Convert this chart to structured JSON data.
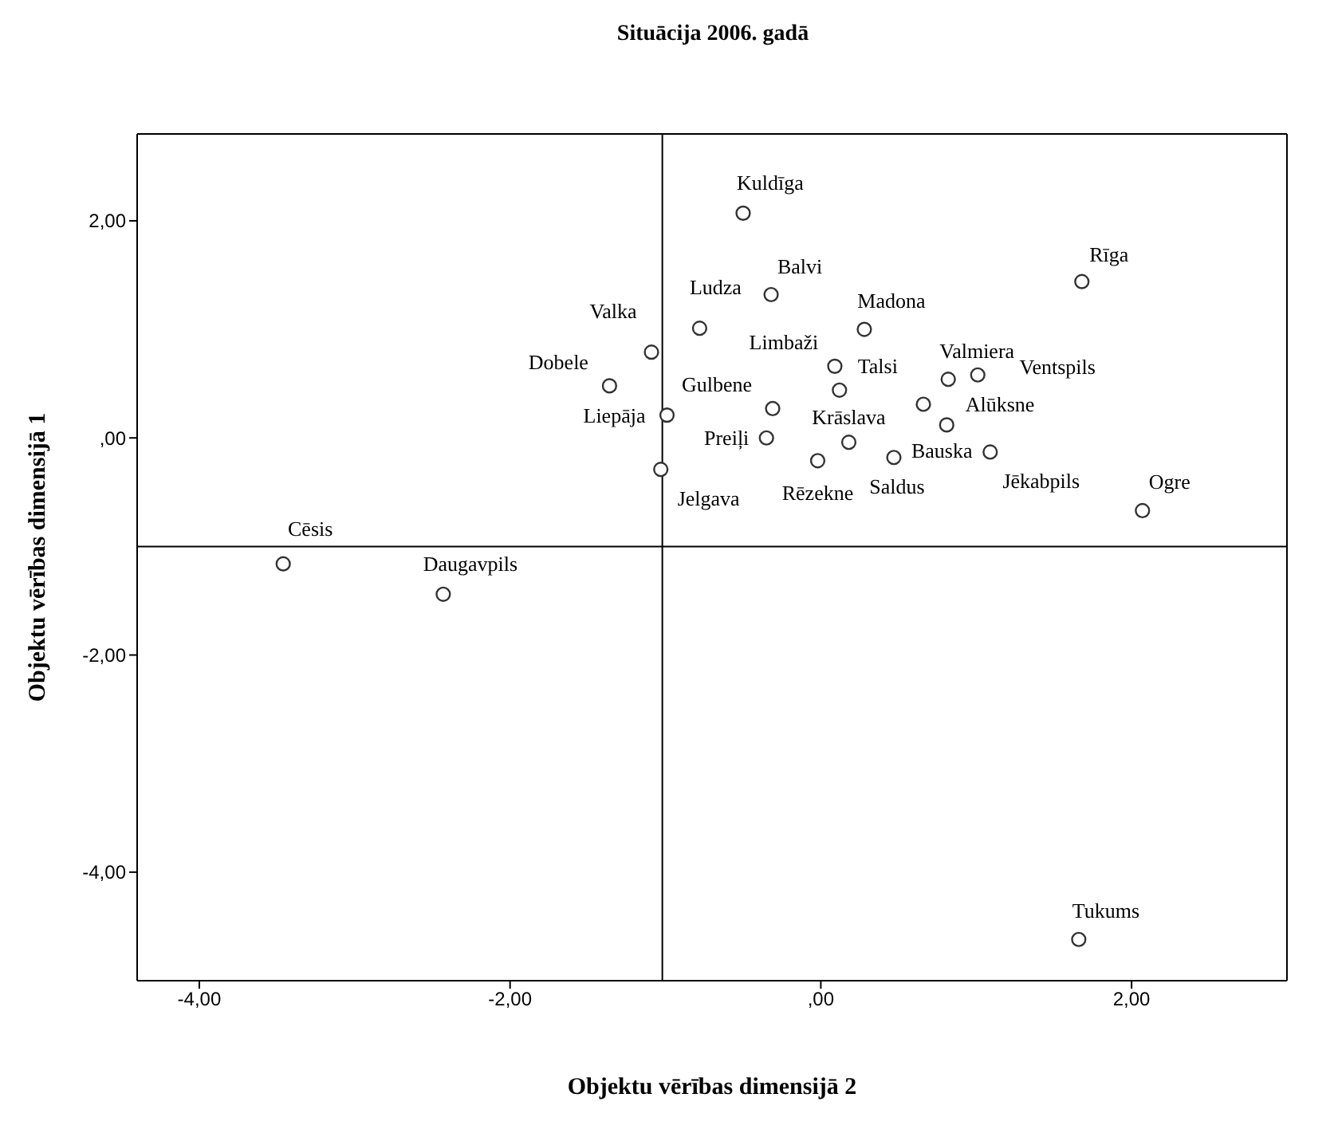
{
  "chart_data": {
    "type": "scatter",
    "title": "Situācija 2006. gadā",
    "xlabel": "Objektu vērības dimensijā 2",
    "ylabel": "Objektu vērības dimensijā 1",
    "xlim": [
      -4.4,
      3.0
    ],
    "ylim": [
      -5.0,
      2.8
    ],
    "xticks": [
      {
        "value": -4,
        "label": "-4,00"
      },
      {
        "value": -2,
        "label": "-2,00"
      },
      {
        "value": 0,
        "label": ",00"
      },
      {
        "value": 2,
        "label": "2,00"
      }
    ],
    "yticks": [
      {
        "value": -4,
        "label": "-4,00"
      },
      {
        "value": -2,
        "label": "-2,00"
      },
      {
        "value": 0,
        "label": ",00"
      },
      {
        "value": 2,
        "label": "2,00"
      }
    ],
    "marker": "circle",
    "grid": false,
    "legend": false,
    "ref_lines": [
      {
        "axis": "x",
        "value": -1.02,
        "color": "#000000"
      },
      {
        "axis": "y",
        "value": -1.0,
        "color": "#000000"
      }
    ],
    "series": [
      {
        "color": "#333333",
        "x": [
          -0.5,
          1.68,
          -0.32,
          -0.78,
          0.28,
          -1.09,
          -1.36,
          0.12,
          0.09,
          -0.31,
          -0.99,
          -0.35,
          0.18,
          -0.02,
          0.47,
          -1.03,
          0.82,
          1.01,
          0.66,
          0.81,
          1.09,
          2.07,
          -3.46,
          -2.43,
          1.66
        ],
        "values": [
          2.07,
          1.44,
          1.32,
          1.01,
          1.0,
          0.79,
          0.48,
          0.44,
          0.66,
          0.27,
          0.21,
          0.0,
          -0.04,
          -0.21,
          -0.18,
          -0.29,
          0.54,
          0.58,
          0.31,
          0.12,
          -0.13,
          -0.67,
          -1.16,
          -1.44,
          -4.62
        ],
        "value_labels": [
          "Kuldīga",
          "Rīga",
          "Balvi",
          "Ludza",
          "Madona",
          "Valka",
          "Dobele",
          "Talsi",
          "Limbaži",
          "Gulbene",
          "Liepāja",
          "Preiļi",
          "Krāslava",
          "Rēzekne",
          "Saldus",
          "Jelgava",
          "Valmiera",
          "Ventspils",
          "Alūksne",
          "Bauska",
          "Jēkabpils",
          "Ogre",
          "Cēsis",
          "Daugavpils",
          "Tukums"
        ]
      }
    ]
  }
}
